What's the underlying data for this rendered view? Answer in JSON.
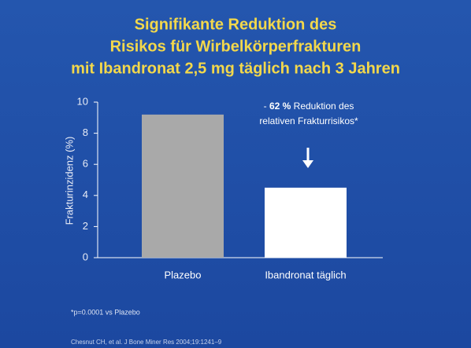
{
  "chart_data": {
    "type": "bar",
    "title_lines": [
      "Signifikante Reduktion des",
      "Risikos für Wirbelkörperfrakturen",
      "mit Ibandronat 2,5 mg täglich nach 3 Jahren"
    ],
    "ylabel": "Frakturinzidenz (%)",
    "categories": [
      "Plazebo",
      "Ibandronat täglich"
    ],
    "values": [
      9.2,
      4.5
    ],
    "colors": [
      "#a9a9a9",
      "#ffffff"
    ],
    "ylim": [
      0,
      10
    ],
    "yticks": [
      0,
      2,
      4,
      6,
      8,
      10
    ],
    "annotation": {
      "prefix": "- ",
      "bold": "62 %",
      "rest": " Reduktion des",
      "line2": "relativen Frakturrisikos*"
    },
    "footnote": "*p=0.0001 vs Plazebo",
    "citation": "Chesnut CH, et al. J Bone Miner Res 2004;19:1241–9"
  }
}
